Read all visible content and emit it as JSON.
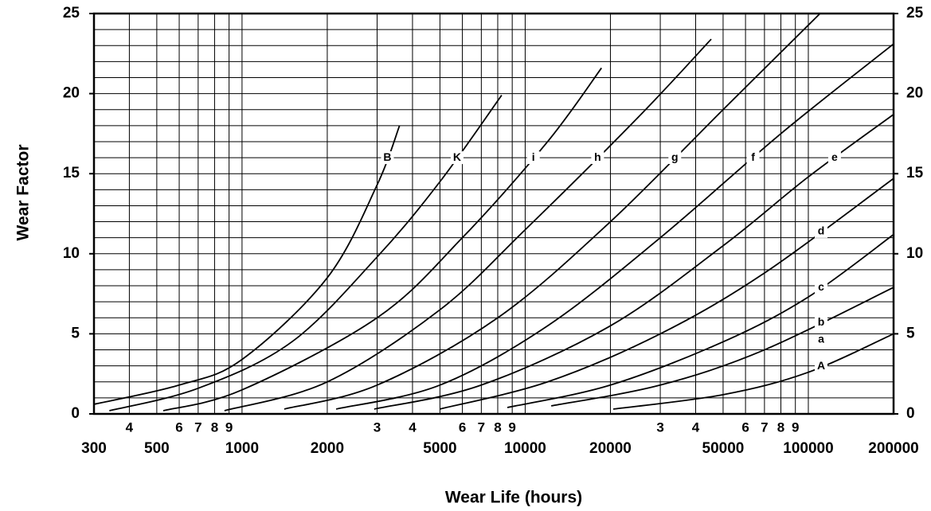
{
  "chart_data": {
    "type": "line",
    "x_label": "Wear Life  (hours)",
    "y_label": "Wear Factor",
    "xscale": "log",
    "xlim": [
      300,
      200000
    ],
    "ylim": [
      0,
      25
    ],
    "y2lim": [
      0,
      25
    ],
    "xticks": [
      300,
      {
        "value": 400,
        "label": "4"
      },
      500,
      {
        "value": 600,
        "label": "6"
      },
      {
        "value": 700,
        "label": "7"
      },
      {
        "value": 800,
        "label": "8"
      },
      {
        "value": 900,
        "label": "9"
      },
      1000,
      2000,
      {
        "value": 3000,
        "label": "3"
      },
      {
        "value": 4000,
        "label": "4"
      },
      5000,
      {
        "value": 6000,
        "label": "6"
      },
      {
        "value": 7000,
        "label": "7"
      },
      {
        "value": 8000,
        "label": "8"
      },
      {
        "value": 9000,
        "label": "9"
      },
      10000,
      20000,
      {
        "value": 30000,
        "label": "3"
      },
      {
        "value": 40000,
        "label": "4"
      },
      50000,
      {
        "value": 60000,
        "label": "6"
      },
      {
        "value": 70000,
        "label": "7"
      },
      {
        "value": 80000,
        "label": "8"
      },
      {
        "value": 90000,
        "label": "9"
      },
      100000,
      200000
    ],
    "yticks": [
      0,
      5,
      10,
      15,
      20,
      25
    ],
    "y2ticks": [
      0,
      5,
      10,
      15,
      20,
      25
    ],
    "y_gridlines": [
      0,
      1,
      2,
      3,
      4,
      5,
      6,
      7,
      8,
      9,
      10,
      11,
      12,
      13,
      14,
      15,
      16,
      17,
      18,
      19,
      20,
      21,
      22,
      23,
      24,
      25
    ],
    "grid": true,
    "annotations": [
      "a"
    ],
    "series": [
      {
        "name": "B",
        "color": "#000000",
        "x": [
          300,
          600,
          1000,
          2000,
          3000,
          3600
        ],
        "values": [
          0.6,
          1.8,
          3.4,
          8.5,
          14.3,
          18.0
        ]
      },
      {
        "name": "K",
        "color": "#000000",
        "x": [
          340,
          700,
          1500,
          3000,
          5000,
          8260
        ],
        "values": [
          0.2,
          1.6,
          4.5,
          9.8,
          14.5,
          19.9
        ]
      },
      {
        "name": "i",
        "color": "#000000",
        "x": [
          527,
          1000,
          3000,
          6000,
          12000,
          18600
        ],
        "values": [
          0.2,
          1.5,
          6,
          11,
          17,
          21.6
        ]
      },
      {
        "name": "h",
        "color": "#000000",
        "x": [
          867,
          2000,
          5000,
          10000,
          25000,
          45400
        ],
        "values": [
          0.2,
          2,
          6.5,
          11.5,
          18.5,
          23.4
        ]
      },
      {
        "name": "g",
        "color": "#000000",
        "x": [
          1410,
          3000,
          8000,
          20000,
          50000,
          110000
        ],
        "values": [
          0.3,
          1.8,
          6,
          12,
          19,
          25
        ]
      },
      {
        "name": "f",
        "color": "#000000",
        "x": [
          2150,
          5000,
          12000,
          30000,
          80000,
          200000
        ],
        "values": [
          0.3,
          1.8,
          5.5,
          11,
          17.5,
          23.1
        ]
      },
      {
        "name": "e",
        "color": "#000000",
        "x": [
          2930,
          7000,
          20000,
          50000,
          100000,
          200000
        ],
        "values": [
          0.3,
          1.8,
          5.5,
          10.5,
          14.8,
          18.7
        ]
      },
      {
        "name": "d",
        "color": "#000000",
        "x": [
          4990,
          12000,
          30000,
          70000,
          200000
        ],
        "values": [
          0.3,
          2,
          5,
          8.8,
          14.7
        ]
      },
      {
        "name": "c",
        "color": "#000000",
        "x": [
          8650,
          20000,
          50000,
          100000,
          200000
        ],
        "values": [
          0.4,
          1.8,
          4.5,
          7.3,
          11.2
        ]
      },
      {
        "name": "b",
        "color": "#000000",
        "x": [
          12360,
          30000,
          70000,
          200000
        ],
        "values": [
          0.5,
          1.8,
          4,
          7.9
        ]
      },
      {
        "name": "A",
        "color": "#000000",
        "x": [
          20470,
          50000,
          100000,
          200000
        ],
        "values": [
          0.3,
          1.2,
          2.6,
          5.0
        ]
      }
    ]
  }
}
